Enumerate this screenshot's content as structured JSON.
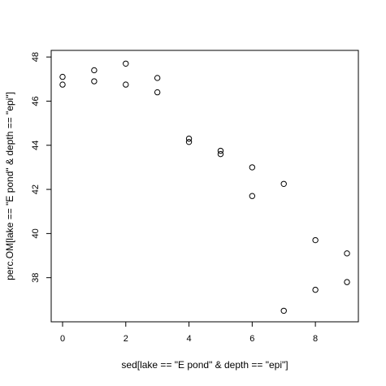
{
  "chart_data": {
    "type": "scatter",
    "title": "",
    "xlabel": "sed[lake == \"E pond\" & depth == \"epi\"]",
    "ylabel": "perc.OM[lake == \"E pond\" & depth == \"epi\"]",
    "xlim": [
      -0.36,
      9.36
    ],
    "ylim": [
      36.0,
      48.3
    ],
    "x_ticks": [
      0,
      2,
      4,
      6,
      8
    ],
    "y_ticks": [
      38,
      40,
      42,
      44,
      46,
      48
    ],
    "grid": false,
    "marker": "open-circle",
    "points": [
      {
        "x": 0,
        "y": 47.1
      },
      {
        "x": 0,
        "y": 46.75
      },
      {
        "x": 1,
        "y": 47.4
      },
      {
        "x": 1,
        "y": 46.9
      },
      {
        "x": 2,
        "y": 47.7
      },
      {
        "x": 2,
        "y": 46.75
      },
      {
        "x": 3,
        "y": 47.05
      },
      {
        "x": 3,
        "y": 46.4
      },
      {
        "x": 4,
        "y": 44.3
      },
      {
        "x": 4,
        "y": 44.15
      },
      {
        "x": 5,
        "y": 43.75
      },
      {
        "x": 5,
        "y": 43.6
      },
      {
        "x": 6,
        "y": 43.0
      },
      {
        "x": 6,
        "y": 41.7
      },
      {
        "x": 7,
        "y": 42.25
      },
      {
        "x": 7,
        "y": 36.5
      },
      {
        "x": 8,
        "y": 39.7
      },
      {
        "x": 8,
        "y": 37.45
      },
      {
        "x": 9,
        "y": 39.1
      },
      {
        "x": 9,
        "y": 37.8
      }
    ]
  }
}
